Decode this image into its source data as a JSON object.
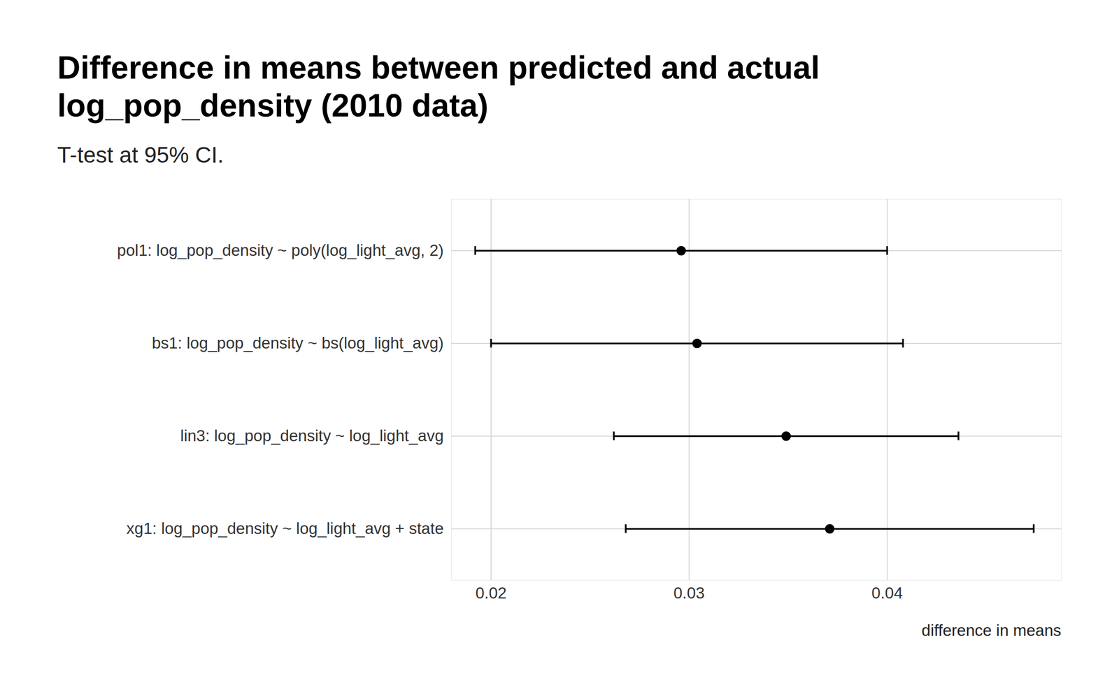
{
  "chart_data": {
    "type": "dot",
    "title": "Difference in means between predicted and actual log_pop_density (2010 data)",
    "subtitle": "T-test at 95% CI.",
    "x_label": "difference in means",
    "orientation": "horizontal",
    "categories": [
      "pol1: log_pop_density ~ poly(log_light_avg, 2)",
      "bs1: log_pop_density ~ bs(log_light_avg)",
      "lin3: log_pop_density ~ log_light_avg",
      "xg1: log_pop_density ~ log_light_avg + state"
    ],
    "values": [
      0.0296,
      0.0304,
      0.0349,
      0.0371
    ],
    "ci_low": [
      0.0192,
      0.02,
      0.0262,
      0.0268
    ],
    "ci_high": [
      0.04,
      0.0408,
      0.0436,
      0.0474
    ],
    "color": "#000000",
    "xlim": [
      0.018,
      0.0488
    ],
    "xticks": [
      0.02,
      0.03,
      0.04
    ],
    "grid": true
  }
}
